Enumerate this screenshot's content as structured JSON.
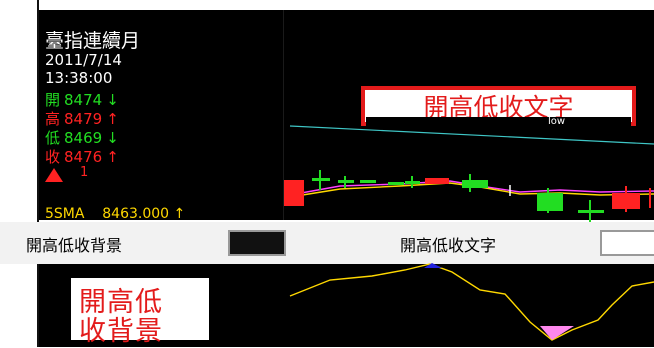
{
  "quote": {
    "title": "臺指連續月",
    "date": "2011/7/14",
    "time": "13:38:00",
    "open_label": "開",
    "open_value": "8474",
    "open_arrow": "↓",
    "high_label": "高",
    "high_value": "8479",
    "high_arrow": "↑",
    "low_label": "低",
    "low_value": "8469",
    "low_arrow": "↓",
    "close_label": "收",
    "close_value": "8476",
    "close_arrow": "↑",
    "up_count": "1"
  },
  "sma": {
    "label": "5SMA",
    "value": "8463.000",
    "arrow": "↑"
  },
  "callouts": {
    "fg_text": "開高低收文字",
    "fg_sample": "low",
    "bg_line1": "開高低",
    "bg_line2": "收背景"
  },
  "settings": {
    "bg_label": "開高低收背景",
    "fg_label": "開高低收文字"
  },
  "colors": {
    "up": "#ff2222",
    "down": "#22dd22",
    "sma_line": "#ffd800",
    "callout_border": "#e31b1b",
    "bg_swatch": "#111111",
    "fg_swatch": "#ffffff"
  }
}
